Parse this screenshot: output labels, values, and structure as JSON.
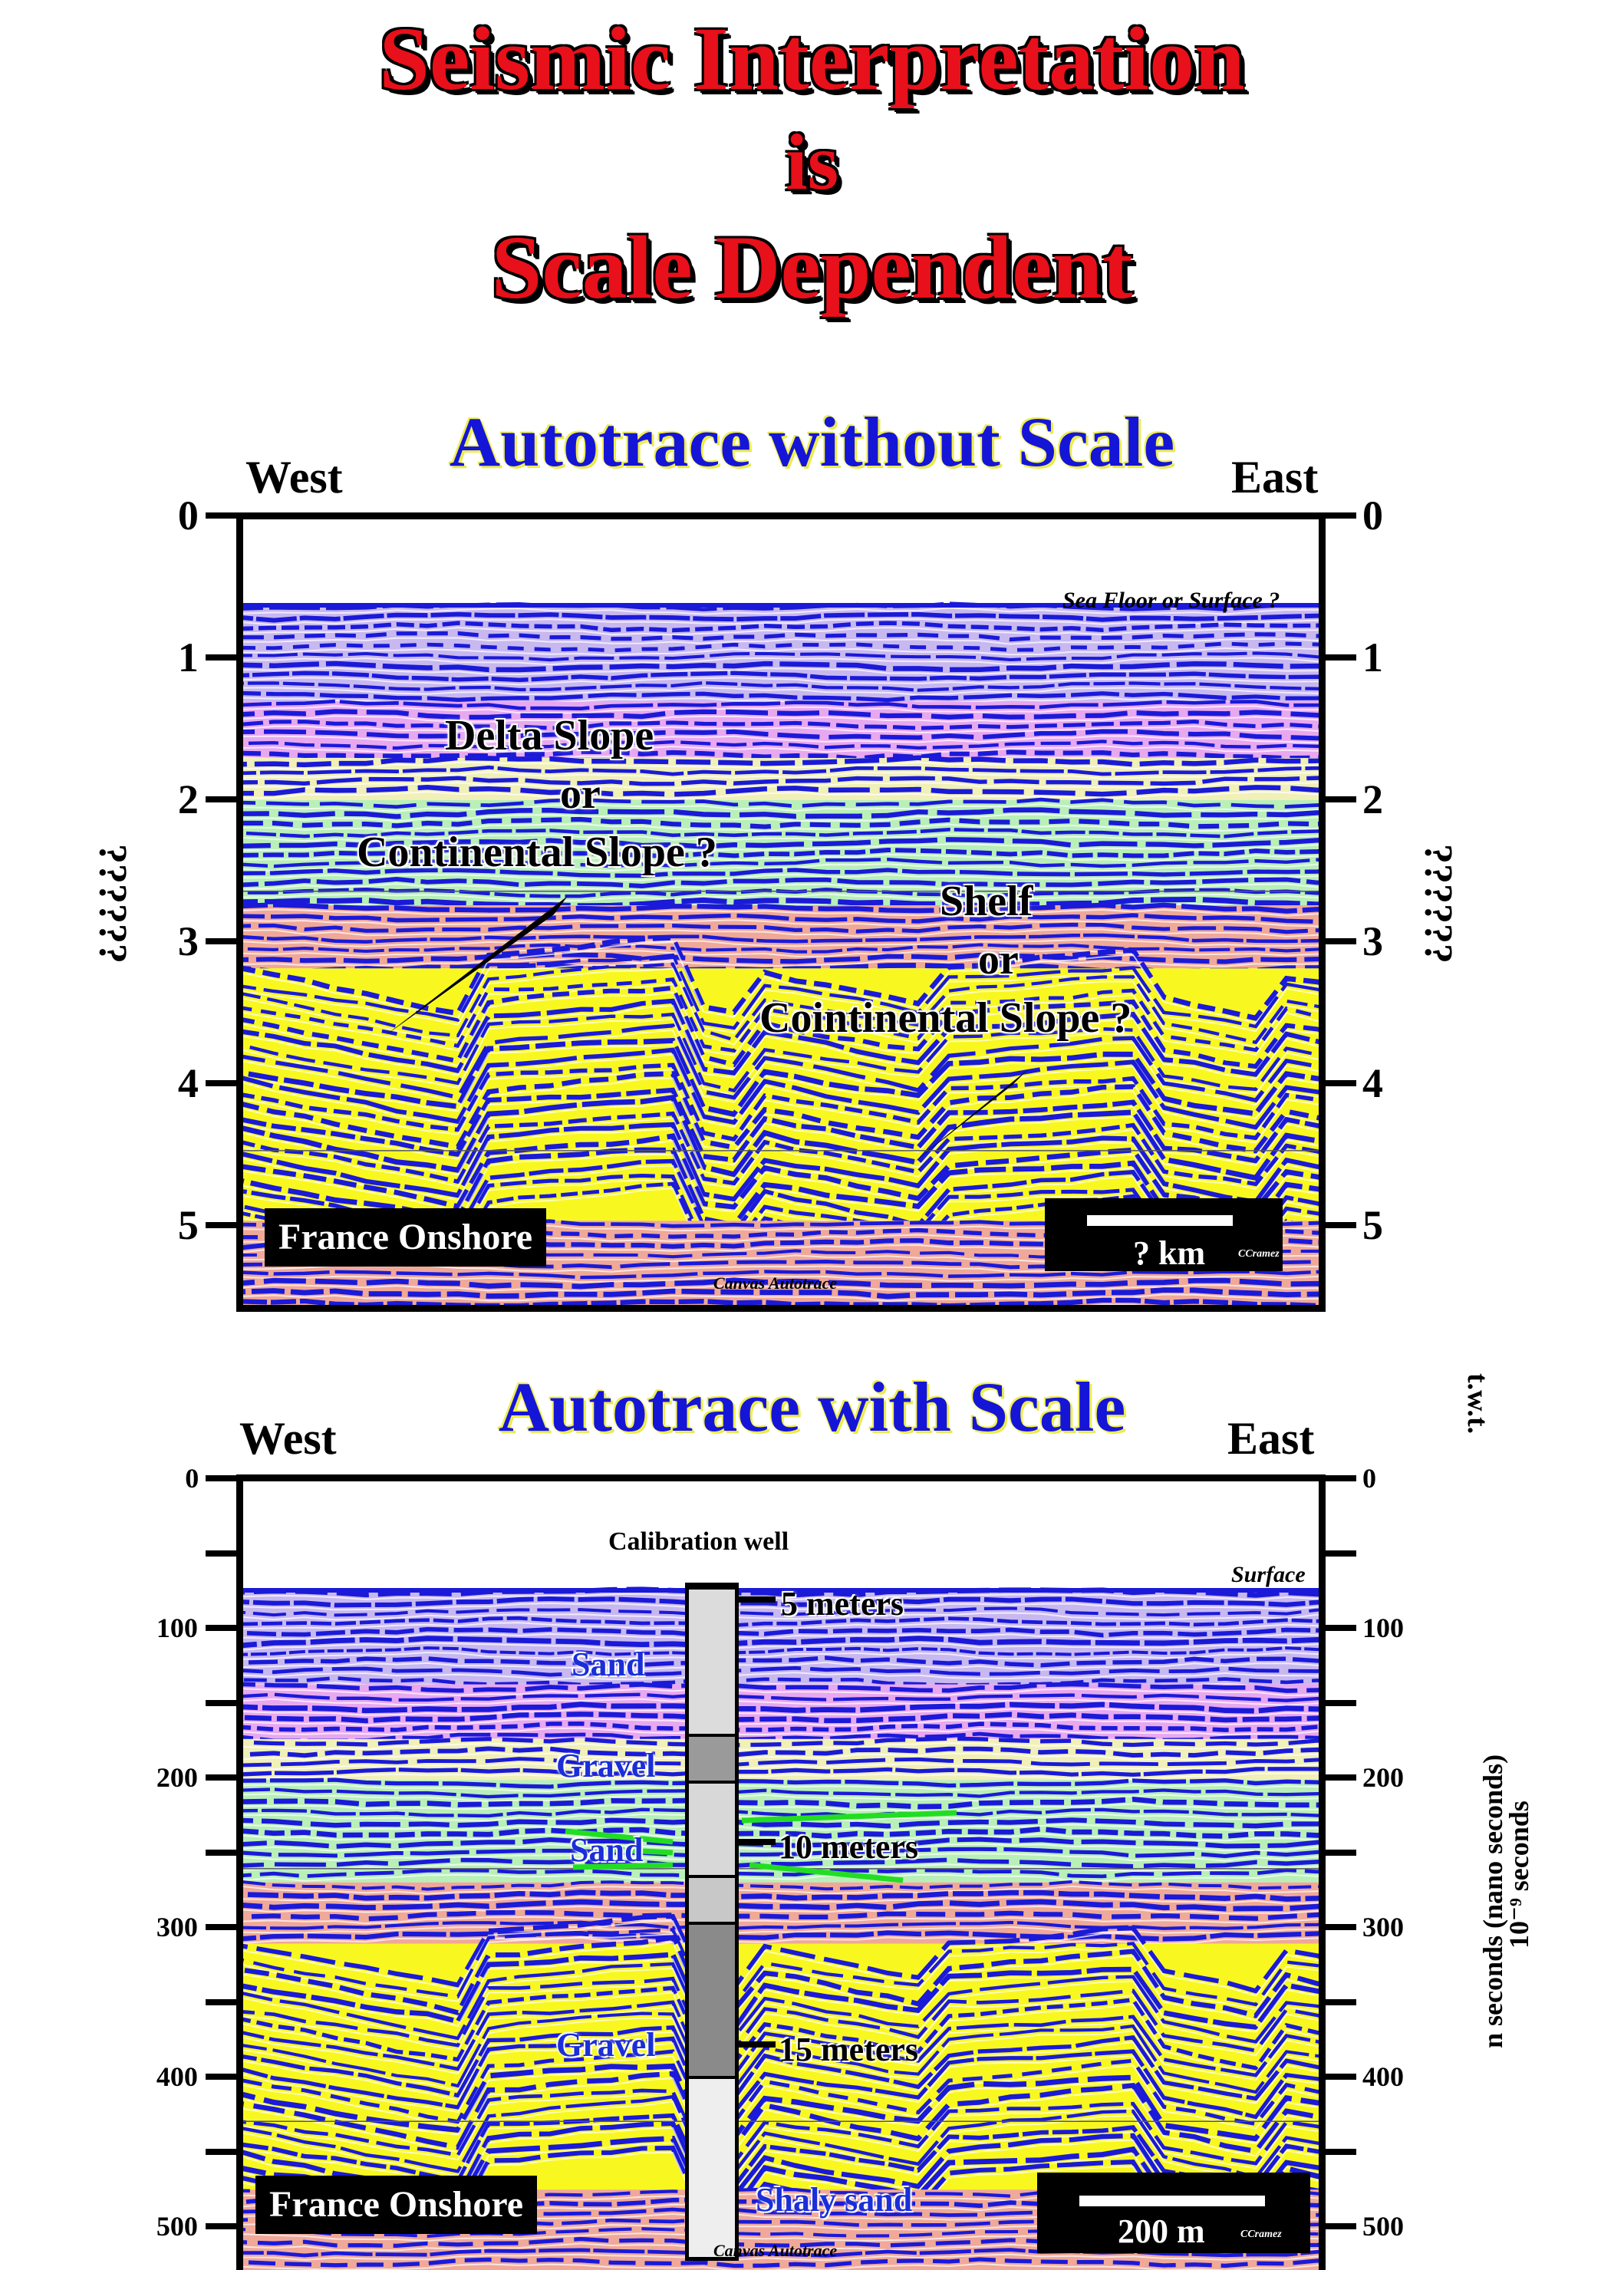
{
  "header": {
    "line1": "Seismic Interpretation",
    "line2": "is",
    "line3": "Scale Dependent"
  },
  "panel_top": {
    "title": "Autotrace without Scale",
    "west": "West",
    "east": "East",
    "ticks": [
      "0",
      "1",
      "2",
      "3",
      "4",
      "5"
    ],
    "axis_label": "??????",
    "annotations": {
      "sea_floor": "Sea Floor or Surface ?",
      "delta_1": "Delta Slope",
      "delta_2": "or",
      "delta_3": "Continental Slope ?",
      "shelf_1": "Shelf",
      "shelf_2": "or",
      "shelf_3": "Cointinental Slope  ?"
    },
    "location": "France Onshore",
    "scale_label": "? km",
    "credit": "CCramez",
    "canvas_note": "Canvas Autotrace"
  },
  "panel_bottom": {
    "title": "Autotrace with Scale",
    "west": "West",
    "east": "East",
    "twt": "t.w.t.",
    "ticks": [
      "0",
      "100",
      "200",
      "300",
      "400",
      "500"
    ],
    "axis_label_1": "n seconds (nano seconds)",
    "axis_label_2": "10⁻⁹ seconds",
    "surface": "Surface",
    "well_title": "Calibration well",
    "well_notes": [
      "5 meters",
      "10 meters",
      "15 meters"
    ],
    "layers": [
      "Sand",
      "Gravel",
      "Sand",
      "Gravel",
      "Shaly  sand"
    ],
    "location": "France Onshore",
    "scale_label": "200 m",
    "credit": "CCramez",
    "canvas_note": "Canvas Autotrace"
  },
  "colors": {
    "title_red": "#e8101a",
    "subtitle_blue": "#1515d8",
    "reflector_blue": "#1a1ad8",
    "layer_violet": "#e8a8f0",
    "layer_cream": "#f0f0b8",
    "layer_green": "#b8f0b8",
    "layer_salmon": "#f0a898",
    "layer_yellow": "#f8f820",
    "layer_lavender": "#c8b8f0",
    "highlight_green": "#22dd22"
  }
}
